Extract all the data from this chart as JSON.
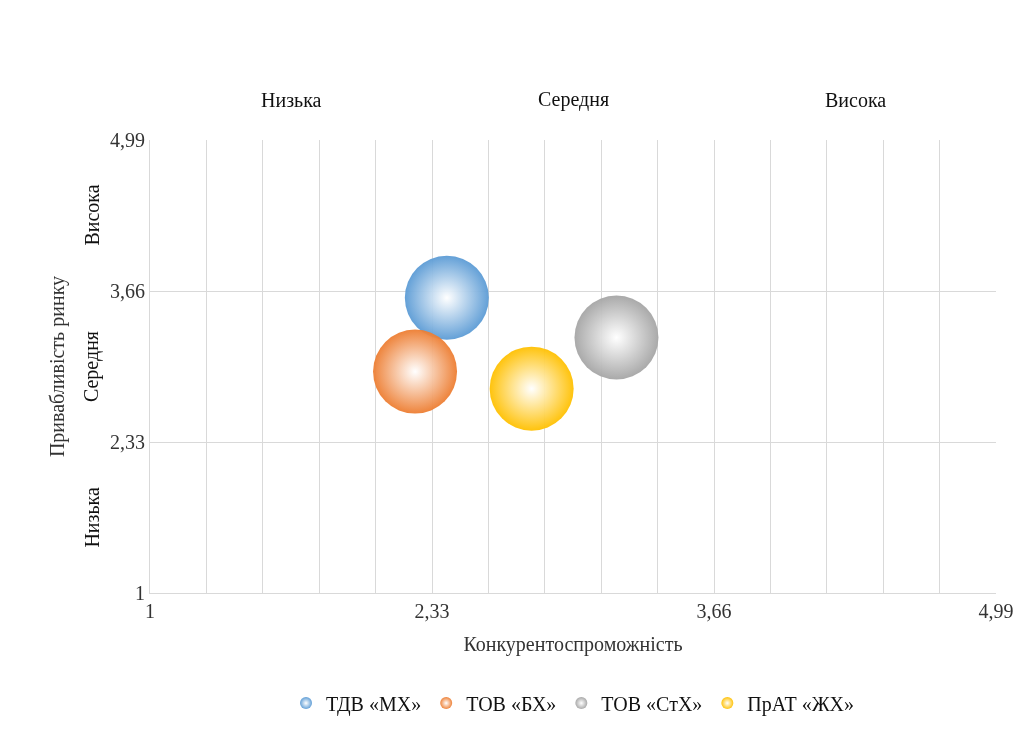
{
  "chart_data": {
    "type": "bubble",
    "xlabel": "Конкурентоспроможність",
    "ylabel": "Привабливість ринку",
    "annotations": [
      "Низька",
      "Середня",
      "Висока",
      "Низька",
      "Середня",
      "Висока"
    ],
    "series": [
      {
        "name": "ТДВ «МХ»",
        "color": "#5b9bd5",
        "x": [
          2.4
        ],
        "values": [
          3.6
        ],
        "sizes": [
          1
        ]
      },
      {
        "name": "ТОВ «БХ»",
        "color": "#ed7d31",
        "x": [
          2.25
        ],
        "values": [
          2.95
        ],
        "sizes": [
          1
        ]
      },
      {
        "name": "ТОВ «СтХ»",
        "color": "#a5a5a5",
        "x": [
          3.2
        ],
        "values": [
          3.25
        ],
        "sizes": [
          1
        ]
      },
      {
        "name": "ПрАТ «ЖХ»",
        "color": "#ffc000",
        "x": [
          2.8
        ],
        "values": [
          2.8
        ],
        "sizes": [
          1
        ]
      }
    ],
    "xlim": [
      1,
      4.99
    ],
    "ylim": [
      1,
      4.99
    ],
    "xticks": [
      1,
      {
        "value": 1.266,
        "label": null
      },
      {
        "value": 1.532,
        "label": null
      },
      {
        "value": 1.798,
        "label": null
      },
      {
        "value": 2.064,
        "label": null
      },
      {
        "value": 2.33,
        "label": "2,33"
      },
      {
        "value": 2.596,
        "label": null
      },
      {
        "value": 2.862,
        "label": null
      },
      {
        "value": 3.128,
        "label": null
      },
      {
        "value": 3.394,
        "label": null
      },
      {
        "value": 3.66,
        "label": "3,66"
      },
      {
        "value": 3.926,
        "label": null
      },
      {
        "value": 4.192,
        "label": null
      },
      {
        "value": 4.458,
        "label": null
      },
      {
        "value": 4.724,
        "label": null
      },
      {
        "value": 4.99,
        "label": "4,99"
      }
    ],
    "yticks": [
      1,
      {
        "value": 2.33,
        "label": "2,33"
      },
      {
        "value": 3.66,
        "label": "3,66"
      },
      {
        "value": 4.99,
        "label": "4,99"
      }
    ],
    "grid": true,
    "legend": "bottom"
  }
}
